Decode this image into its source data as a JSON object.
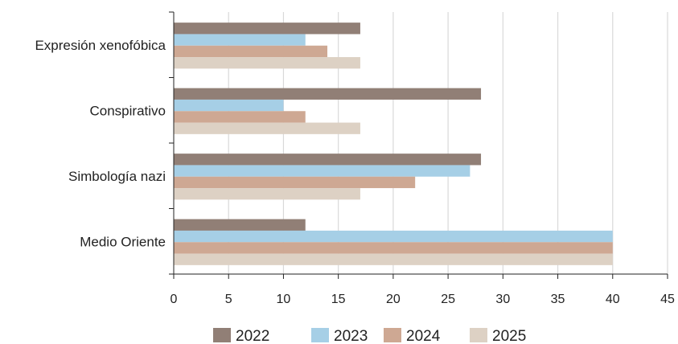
{
  "chart_data": {
    "type": "bar",
    "orientation": "horizontal",
    "categories": [
      "Expresión xenofóbica",
      "Conspirativo",
      "Simbología nazi",
      "Medio Oriente"
    ],
    "series": [
      {
        "name": "2022",
        "color": "#917f76",
        "values": [
          17,
          28,
          28,
          12
        ]
      },
      {
        "name": "2023",
        "color": "#a6cfe6",
        "values": [
          12,
          10,
          27,
          40
        ]
      },
      {
        "name": "2024",
        "color": "#cea893",
        "values": [
          14,
          12,
          22,
          40
        ]
      },
      {
        "name": "2025",
        "color": "#ddd1c4",
        "values": [
          17,
          17,
          17,
          40
        ]
      }
    ],
    "xlim": [
      0,
      45
    ],
    "xticks": [
      "0",
      "5",
      "10",
      "15",
      "20",
      "25",
      "30",
      "35",
      "40",
      "45"
    ],
    "grid": "vertical",
    "legend_position": "bottom"
  }
}
